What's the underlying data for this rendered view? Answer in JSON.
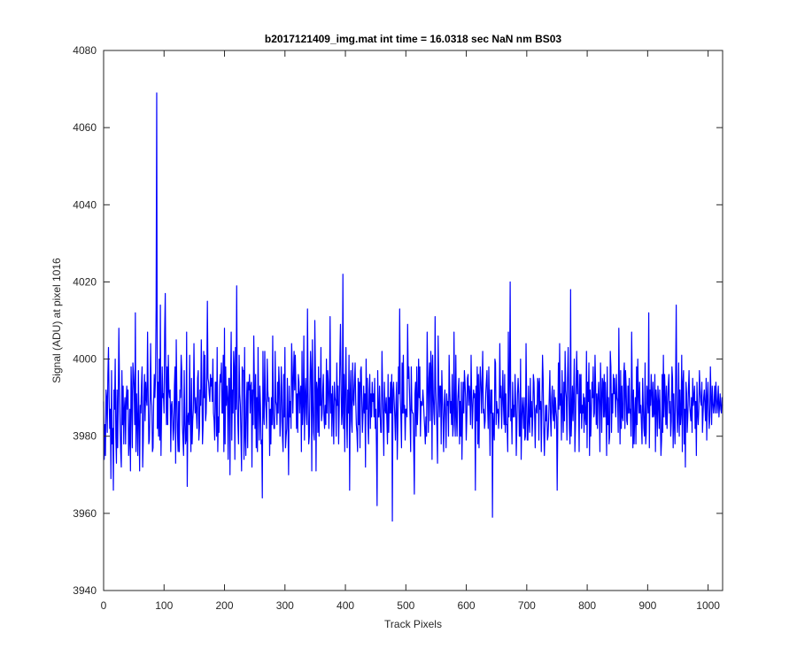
{
  "chart_data": {
    "type": "line",
    "title": "b2017121409_img.mat int time = 16.0318 sec  NaN nm BS03",
    "xlabel": "Track Pixels",
    "ylabel": "Signal (ADU) at pixel 1016",
    "xlim": [
      0,
      1024
    ],
    "ylim": [
      3940,
      4080
    ],
    "xticks": [
      0,
      100,
      200,
      300,
      400,
      500,
      600,
      700,
      800,
      900,
      1000
    ],
    "yticks": [
      3940,
      3960,
      3980,
      4000,
      4020,
      4040,
      4060,
      4080
    ],
    "grid": false,
    "line_color": "#0000ff",
    "series": [
      {
        "values": [
          3989,
          3974,
          3983,
          3975,
          3992,
          3990,
          3981,
          3996,
          4003,
          3990,
          3982,
          3987,
          3969,
          3997,
          3978,
          3982,
          3966,
          3992,
          3987,
          4000,
          3980,
          3973,
          3992,
          3977,
          3989,
          4008,
          3994,
          3983,
          3976,
          3972,
          3997,
          3983,
          3993,
          3978,
          3987,
          3990,
          3978,
          3989,
          3993,
          3987,
          3992,
          3975,
          3979,
          3987,
          3971,
          3998,
          3991,
          3977,
          3999,
          3996,
          3992,
          3983,
          4012,
          3976,
          3991,
          3984,
          3975,
          3997,
          3984,
          3971,
          3988,
          3986,
          3993,
          3998,
          3972,
          3979,
          3990,
          3996,
          3984,
          3994,
          3990,
          3988,
          4007,
          3992,
          3978,
          3979,
          3987,
          4004,
          3990,
          3988,
          3976,
          3977,
          3989,
          3996,
          3990,
          3995,
          4013,
          4069,
          3982,
          3994,
          3980,
          4000,
          3979,
          4014,
          3975,
          3986,
          3998,
          3990,
          3991,
          3986,
          4007,
          4017,
          3994,
          3983,
          3998,
          3983,
          4001,
          3992,
          3990,
          3992,
          3976,
          3988,
          3989,
          3985,
          3979,
          3982,
          3993,
          3998,
          3973,
          4005,
          3991,
          3981,
          3976,
          3989,
          3976,
          3992,
          3990,
          4001,
          3997,
          3983,
          3979,
          3975,
          3997,
          3984,
          3978,
          3979,
          4007,
          3967,
          3985,
          3986,
          3983,
          4001,
          3984,
          3976,
          3995,
          3978,
          3984,
          3987,
          4004,
          3990,
          3986,
          3990,
          3986,
          3982,
          3995,
          3997,
          3979,
          3982,
          3992,
          3988,
          4005,
          3993,
          3978,
          3983,
          4002,
          3990,
          4001,
          3984,
          3986,
          3994,
          4015,
          3995,
          3994,
          3991,
          3989,
          3996,
          3993,
          3995,
          3989,
          4000,
          3986,
          3984,
          3979,
          3994,
          3994,
          3980,
          4003,
          3976,
          3985,
          3981,
          3993,
          3996,
          3994,
          3999,
          3986,
          3986,
          4001,
          3976,
          4008,
          3978,
          3998,
          3988,
          3993,
          3990,
          3974,
          3995,
          3995,
          3970,
          3994,
          4007,
          3979,
          3992,
          3986,
          4002,
          3998,
          3974,
          4003,
          3987,
          4019,
          3989,
          3983,
          3978,
          4001,
          3991,
          3988,
          3980,
          3971,
          3998,
          3997,
          3997,
          3974,
          4003,
          3980,
          3975,
          3989,
          3994,
          3977,
          3994,
          3992,
          3996,
          3986,
          3993,
          3994,
          3972,
          3992,
          3983,
          4006,
          3993,
          3982,
          3996,
          3977,
          3990,
          3976,
          4003,
          3988,
          3979,
          3993,
          3988,
          3978,
          3979,
          3964,
          4002,
          3986,
          3983,
          4002,
          3990,
          3987,
          3982,
          4000,
          3992,
          3989,
          3990,
          3975,
          3987,
          3978,
          3990,
          3983,
          4006,
          3986,
          3982,
          3982,
          4002,
          3989,
          3988,
          3983,
          3994,
          3986,
          3998,
          3993,
          3980,
          3984,
          3998,
          3992,
          3980,
          3976,
          3996,
          3985,
          4003,
          3977,
          3980,
          3982,
          3995,
          3985,
          3970,
          3993,
          3985,
          3989,
          3982,
          4004,
          3998,
          3986,
          3995,
          4002,
          3992,
          4001,
          3993,
          3982,
          3991,
          3981,
          3996,
          3994,
          3986,
          3991,
          3993,
          3976,
          4002,
          3983,
          3988,
          4006,
          3979,
          3990,
          3995,
          3986,
          3983,
          4013,
          3991,
          3978,
          3980,
          3992,
          4002,
          3997,
          3971,
          4005,
          3989,
          3981,
          3979,
          4010,
          3997,
          3971,
          3994,
          3992,
          3981,
          3998,
          3980,
          3995,
          3988,
          4003,
          3984,
          3986,
          3992,
          3996,
          3985,
          3982,
          3988,
          3983,
          4000,
          3986,
          3997,
          3994,
          3982,
          3991,
          4011,
          3986,
          3991,
          3980,
          3993,
          3987,
          3978,
          3994,
          3990,
          3989,
          3980,
          3999,
          3988,
          3993,
          3978,
          3987,
          4000,
          4009,
          3993,
          3983,
          3986,
          4022,
          3982,
          3996,
          3976,
          3992,
          4003,
          3985,
          3977,
          3992,
          3986,
          4001,
          3966,
          3991,
          3997,
          3984,
          3981,
          3999,
          3990,
          3988,
          3994,
          3999,
          3989,
          3983,
          3981,
          3976,
          3995,
          3983,
          3994,
          3977,
          3997,
          3998,
          3989,
          3981,
          3986,
          3993,
          3986,
          3991,
          3972,
          4000,
          3987,
          3995,
          3983,
          3978,
          3992,
          3996,
          3982,
          3991,
          3985,
          3994,
          3989,
          3991,
          3985,
          3995,
          3982,
          3987,
          3977,
          3962,
          3997,
          3985,
          3985,
          3993,
          3986,
          3981,
          3981,
          4002,
          3992,
          3984,
          3975,
          3994,
          3987,
          3986,
          3990,
          3984,
          3978,
          3996,
          3981,
          3990,
          3986,
          3994,
          3986,
          3996,
          3958,
          3992,
          3994,
          3989,
          3985,
          3979,
          3989,
          3994,
          3974,
          3983,
          3998,
          3991,
          4013,
          3990,
          3985,
          3977,
          3999,
          3986,
          4001,
          3986,
          3988,
          3979,
          3987,
          3987,
          3985,
          4009,
          3995,
          3998,
          3992,
          3985,
          3976,
          3998,
          3987,
          3986,
          3986,
          3977,
          3965,
          3991,
          3994,
          3980,
          3998,
          3983,
          3988,
          4000,
          3990,
          3998,
          3980,
          3989,
          3988,
          3988,
          3992,
          3989,
          3985,
          3982,
          3978,
          3985,
          3980,
          4007,
          3994,
          3981,
          3995,
          3999,
          3984,
          4002,
          3998,
          3974,
          4001,
          3991,
          3986,
          3983,
          4011,
          3993,
          3987,
          3982,
          3973,
          4006,
          3994,
          3985,
          3993,
          3993,
          3978,
          3997,
          3990,
          3984,
          3976,
          3988,
          3992,
          3985,
          3977,
          3991,
          3988,
          3989,
          3980,
          4001,
          3992,
          3986,
          3989,
          3983,
          3996,
          3980,
          3983,
          4007,
          3986,
          3980,
          4001,
          3985,
          3980,
          3989,
          3992,
          3995,
          3978,
          3989,
          3980,
          3994,
          3974,
          3985,
          3994,
          3986,
          3997,
          3994,
          3990,
          3979,
          3985,
          3995,
          3996,
          3988,
          3993,
          3991,
          3983,
          4001,
          3990,
          3982,
          3988,
          3992,
          3990,
          3991,
          3966,
          3993,
          3984,
          3998,
          3978,
          3996,
          3977,
          3991,
          3998,
          3994,
          3986,
          3993,
          4002,
          3986,
          3987,
          3982,
          3984,
          3991,
          3994,
          3997,
          3988,
          3982,
          3998,
          3988,
          3975,
          3992,
          3986,
          3992,
          3959,
          3986,
          3982,
          3979,
          4000,
          3999,
          3983,
          3989,
          3986,
          3987,
          3982,
          3986,
          4004,
          3990,
          3993,
          3982,
          3989,
          3997,
          3988,
          3983,
          3996,
          3981,
          3991,
          3983,
          3983,
          3976,
          4007,
          3985,
          3994,
          4020,
          3984,
          3987,
          3978,
          3994,
          3985,
          3988,
          3985,
          3996,
          3989,
          3975,
          3983,
          3991,
          3995,
          3991,
          3980,
          3980,
          4000,
          3974,
          3984,
          3990,
          3987,
          3982,
          3990,
          3979,
          3980,
          4004,
          3989,
          3979,
          3979,
          3993,
          3984,
          3981,
          3995,
          3985,
          3989,
          3980,
          3985,
          3996,
          3994,
          3986,
          3977,
          3987,
          3988,
          3986,
          3995,
          3994,
          3979,
          3995,
          3987,
          3989,
          3976,
          3988,
          4001,
          3995,
          3982,
          3975,
          3982,
          3988,
          3984,
          3988,
          3979,
          3980,
          3984,
          3990,
          3997,
          3985,
          3980,
          3990,
          3993,
          3986,
          3984,
          3992,
          3982,
          3990,
          3987,
          3985,
          3966,
          3983,
          3999,
          3987,
          4004,
          3988,
          3991,
          3979,
          3997,
          3988,
          3981,
          3994,
          3984,
          4002,
          3992,
          3990,
          3979,
          3995,
          4003,
          3992,
          3982,
          3978,
          4018,
          3980,
          3986,
          3993,
          3984,
          3991,
          4000,
          3976,
          3983,
          3994,
          4002,
          3991,
          3997,
          3988,
          3976,
          3996,
          3986,
          3996,
          3982,
          3988,
          3986,
          3991,
          3981,
          3990,
          3985,
          3983,
          4002,
          3977,
          3994,
          3989,
          3999,
          3975,
          3992,
          3980,
          3986,
          3994,
          3990,
          3998,
          3985,
          3986,
          4001,
          3993,
          3983,
          3991,
          3982,
          3990,
          3994,
          3988,
          3976,
          3999,
          3991,
          3981,
          3995,
          3994,
          3985,
          3996,
          3985,
          3994,
          3987,
          3975,
          3998,
          3983,
          3990,
          3978,
          3980,
          4002,
          3998,
          3981,
          3991,
          3986,
          3996,
          3991,
          3995,
          3990,
          3985,
          3996,
          3990,
          3989,
          3981,
          4008,
          3990,
          3978,
          3997,
          3982,
          3993,
          3985,
          3984,
          3996,
          3999,
          3982,
          3997,
          3993,
          3984,
          3983,
          3993,
          3986,
          3995,
          3986,
          3987,
          3980,
          4007,
          3992,
          3977,
          3992,
          3978,
          3985,
          3990,
          3978,
          3998,
          3983,
          4000,
          3991,
          3986,
          3994,
          3986,
          3988,
          3983,
          3978,
          3995,
          3988,
          3982,
          3980,
          3999,
          3978,
          3981,
          3993,
          3990,
          3986,
          4012,
          3977,
          3992,
          3988,
          3996,
          3991,
          3985,
          3994,
          3985,
          3986,
          3996,
          3976,
          3992,
          3989,
          3980,
          3993,
          3989,
          3982,
          3992,
          3984,
          3975,
          3979,
          3996,
          3981,
          4001,
          3985,
          3996,
          3990,
          3983,
          3993,
          3982,
          3988,
          3993,
          3996,
          3986,
          3989,
          3980,
          3984,
          3998,
          3995,
          3977,
          3991,
          3983,
          3978,
          3994,
          4014,
          3988,
          3981,
          3986,
          3999,
          3980,
          3992,
          3983,
          3986,
          4001,
          3976,
          3994,
          3997,
          3978,
          3987,
          3972,
          3994,
          3991,
          3981,
          3985,
          3992,
          3997,
          3988,
          3986,
          3984,
          3990,
          3981,
          3995,
          3988,
          3990,
          3993,
          3982,
          3989,
          3975,
          3994,
          3986,
          3983,
          3987,
          3997,
          3992,
          3989,
          3988,
          3994,
          3981,
          3986,
          3990,
          3992,
          3988,
          3984,
          3995,
          3979,
          3990,
          3994,
          3987,
          3982,
          3985,
          3998,
          3990,
          3983,
          3993,
          3989,
          3986,
          3988,
          3993,
          3986,
          3994,
          3990,
          3986,
          3989,
          3993,
          3985,
          3988,
          3991,
          3987,
          3986,
          3990,
          3988
        ]
      }
    ]
  }
}
